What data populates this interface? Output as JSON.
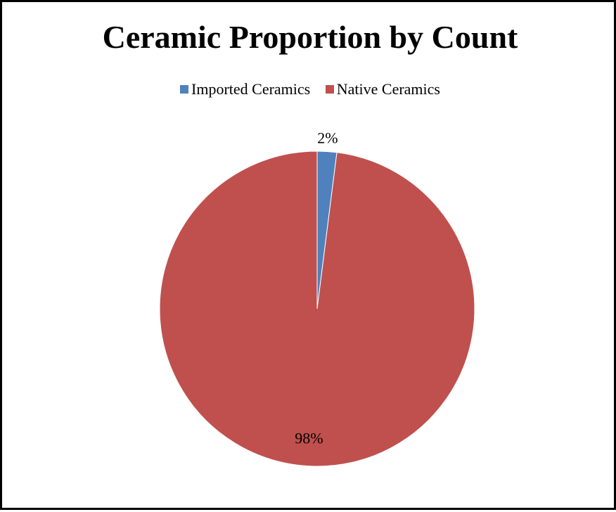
{
  "chart_data": {
    "type": "pie",
    "title": "Ceramic Proportion by Count",
    "categories": [
      "Imported Ceramics",
      "Native Ceramics"
    ],
    "values": [
      2,
      98
    ],
    "data_labels": [
      "2%",
      "98%"
    ],
    "colors": [
      "#4F81BD",
      "#C0504D"
    ],
    "legend_position": "top"
  }
}
